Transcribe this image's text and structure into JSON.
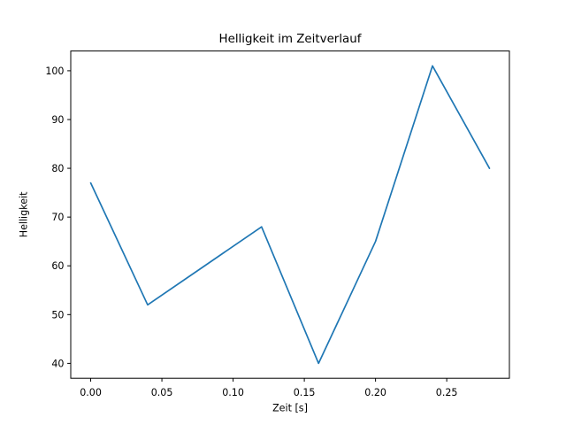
{
  "figure": {
    "background": "#ffffff",
    "spine_color": "#000000",
    "text_color": "#000000"
  },
  "chart_data": {
    "type": "line",
    "title": "Helligkeit im Zeitverlauf",
    "xlabel": "Zeit [s]",
    "ylabel": "Helligkeit",
    "x": [
      0.0,
      0.04,
      0.08,
      0.12,
      0.16,
      0.2,
      0.24,
      0.28
    ],
    "y": [
      77,
      52,
      60,
      68,
      40,
      65,
      101,
      80
    ],
    "line_color": "#1f77b4",
    "line_width": 1.7,
    "xticks": [
      0.0,
      0.05,
      0.1,
      0.15,
      0.2,
      0.25
    ],
    "xtick_labels": [
      "0.00",
      "0.05",
      "0.10",
      "0.15",
      "0.20",
      "0.25"
    ],
    "yticks": [
      40,
      50,
      60,
      70,
      80,
      90,
      100
    ],
    "ytick_labels": [
      "40",
      "50",
      "60",
      "70",
      "80",
      "90",
      "100"
    ],
    "xlim": [
      -0.014,
      0.294
    ],
    "ylim": [
      36.95,
      104.05
    ],
    "grid": false,
    "legend": null
  }
}
